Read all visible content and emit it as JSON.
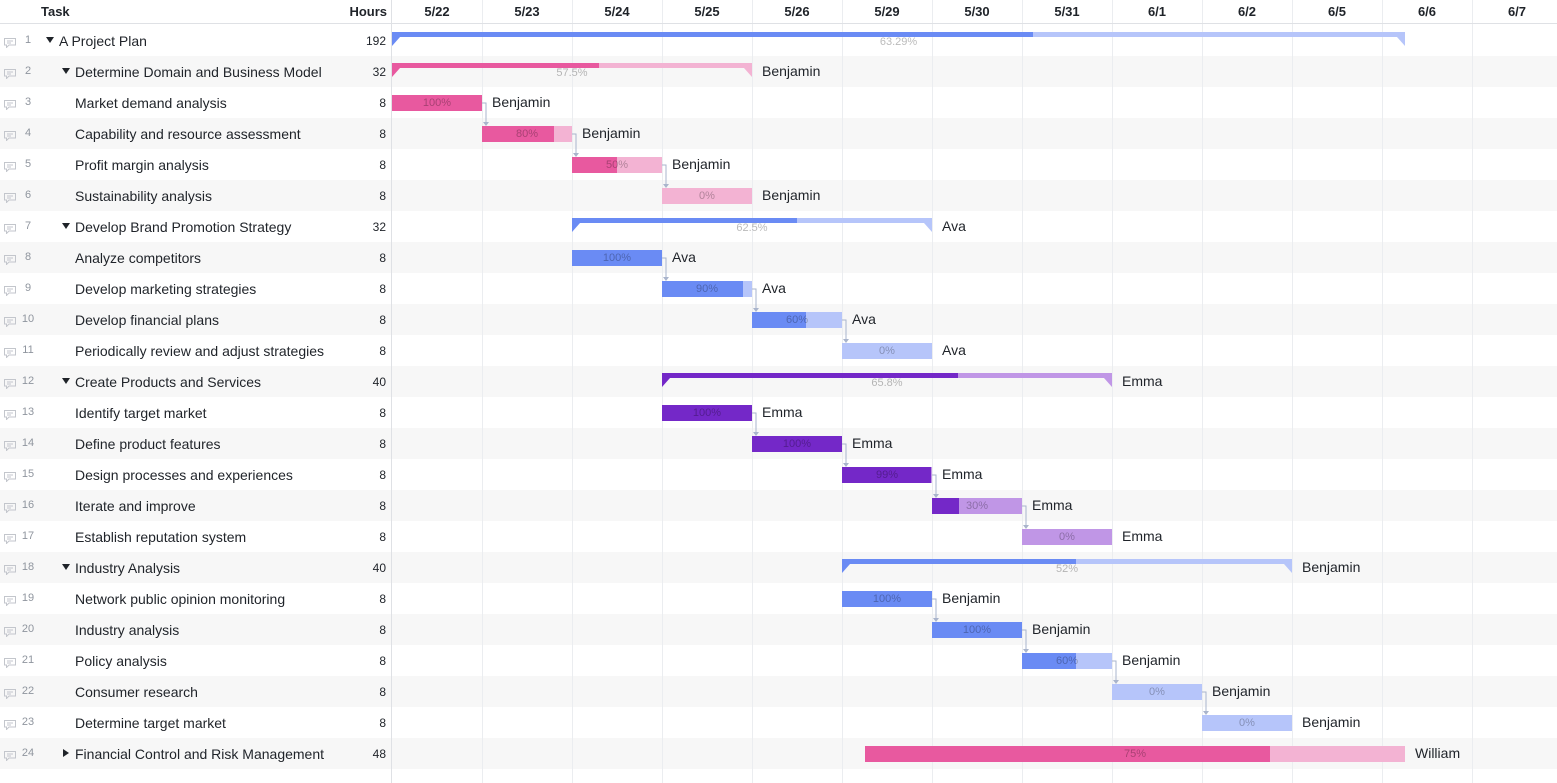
{
  "header": {
    "task_label": "Task",
    "hours_label": "Hours"
  },
  "dates": [
    "5/22",
    "5/23",
    "5/24",
    "5/25",
    "5/26",
    "5/29",
    "5/30",
    "5/31",
    "6/1",
    "6/2",
    "6/5",
    "6/6",
    "6/7"
  ],
  "colors": {
    "blue": "#6a8bf4",
    "blue_light": "#b6c5fa",
    "pink": "#e8599f",
    "pink_light": "#f3b3d3",
    "purple": "#7428c8",
    "purple_light": "#c096e6"
  },
  "icons": {
    "comment": "comment-icon",
    "expanded": "triangle-down-icon",
    "collapsed": "triangle-right-icon"
  },
  "tasks": [
    {
      "num": "1",
      "name": "A Project Plan",
      "hours": "192",
      "level": 0,
      "toggle": "down",
      "type": "summary",
      "color": "blue",
      "start": 0,
      "end": 11.25,
      "progress": 0.6329,
      "pct": "63.29%",
      "assignee": ""
    },
    {
      "num": "2",
      "name": "Determine Domain and Business Model",
      "hours": "32",
      "level": 1,
      "toggle": "down",
      "type": "summary",
      "color": "pink",
      "start": 0,
      "end": 4,
      "progress": 0.575,
      "pct": "57.5%",
      "assignee": "Benjamin"
    },
    {
      "num": "3",
      "name": "Market demand analysis",
      "hours": "8",
      "level": 2,
      "type": "task",
      "color": "pink",
      "start": 0,
      "end": 1,
      "progress": 1,
      "pct": "100%",
      "assignee": "Benjamin"
    },
    {
      "num": "4",
      "name": "Capability and resource assessment",
      "hours": "8",
      "level": 2,
      "type": "task",
      "color": "pink",
      "start": 1,
      "end": 2,
      "progress": 0.8,
      "pct": "80%",
      "assignee": "Benjamin"
    },
    {
      "num": "5",
      "name": "Profit margin analysis",
      "hours": "8",
      "level": 2,
      "type": "task",
      "color": "pink",
      "start": 2,
      "end": 3,
      "progress": 0.5,
      "pct": "50%",
      "assignee": "Benjamin"
    },
    {
      "num": "6",
      "name": "Sustainability analysis",
      "hours": "8",
      "level": 2,
      "type": "task",
      "color": "pink",
      "start": 3,
      "end": 4,
      "progress": 0,
      "pct": "0%",
      "assignee": "Benjamin"
    },
    {
      "num": "7",
      "name": "Develop Brand Promotion Strategy",
      "hours": "32",
      "level": 1,
      "toggle": "down",
      "type": "summary",
      "color": "blue",
      "start": 2,
      "end": 6,
      "progress": 0.625,
      "pct": "62.5%",
      "assignee": "Ava"
    },
    {
      "num": "8",
      "name": "Analyze competitors",
      "hours": "8",
      "level": 2,
      "type": "task",
      "color": "blue",
      "start": 2,
      "end": 3,
      "progress": 1,
      "pct": "100%",
      "assignee": "Ava"
    },
    {
      "num": "9",
      "name": "Develop marketing strategies",
      "hours": "8",
      "level": 2,
      "type": "task",
      "color": "blue",
      "start": 3,
      "end": 4,
      "progress": 0.9,
      "pct": "90%",
      "assignee": "Ava"
    },
    {
      "num": "10",
      "name": "Develop financial plans",
      "hours": "8",
      "level": 2,
      "type": "task",
      "color": "blue",
      "start": 4,
      "end": 5,
      "progress": 0.6,
      "pct": "60%",
      "assignee": "Ava"
    },
    {
      "num": "11",
      "name": "Periodically review and adjust strategies",
      "hours": "8",
      "level": 2,
      "type": "task",
      "color": "blue",
      "start": 5,
      "end": 6,
      "progress": 0,
      "pct": "0%",
      "assignee": "Ava"
    },
    {
      "num": "12",
      "name": "Create Products and Services",
      "hours": "40",
      "level": 1,
      "toggle": "down",
      "type": "summary",
      "color": "purple",
      "start": 3,
      "end": 8,
      "progress": 0.658,
      "pct": "65.8%",
      "assignee": "Emma"
    },
    {
      "num": "13",
      "name": "Identify target market",
      "hours": "8",
      "level": 2,
      "type": "task",
      "color": "purple",
      "start": 3,
      "end": 4,
      "progress": 1,
      "pct": "100%",
      "assignee": "Emma"
    },
    {
      "num": "14",
      "name": "Define product features",
      "hours": "8",
      "level": 2,
      "type": "task",
      "color": "purple",
      "start": 4,
      "end": 5,
      "progress": 1,
      "pct": "100%",
      "assignee": "Emma"
    },
    {
      "num": "15",
      "name": "Design processes and experiences",
      "hours": "8",
      "level": 2,
      "type": "task",
      "color": "purple",
      "start": 5,
      "end": 6,
      "progress": 0.99,
      "pct": "99%",
      "assignee": "Emma"
    },
    {
      "num": "16",
      "name": "Iterate and improve",
      "hours": "8",
      "level": 2,
      "type": "task",
      "color": "purple",
      "start": 6,
      "end": 7,
      "progress": 0.3,
      "pct": "30%",
      "assignee": "Emma"
    },
    {
      "num": "17",
      "name": "Establish reputation system",
      "hours": "8",
      "level": 2,
      "type": "task",
      "color": "purple",
      "start": 7,
      "end": 8,
      "progress": 0,
      "pct": "0%",
      "assignee": "Emma"
    },
    {
      "num": "18",
      "name": "Industry Analysis",
      "hours": "40",
      "level": 1,
      "toggle": "down",
      "type": "summary",
      "color": "blue",
      "start": 5,
      "end": 10,
      "progress": 0.52,
      "pct": "52%",
      "assignee": "Benjamin"
    },
    {
      "num": "19",
      "name": "Network public opinion monitoring",
      "hours": "8",
      "level": 2,
      "type": "task",
      "color": "blue",
      "start": 5,
      "end": 6,
      "progress": 1,
      "pct": "100%",
      "assignee": "Benjamin"
    },
    {
      "num": "20",
      "name": "Industry analysis",
      "hours": "8",
      "level": 2,
      "type": "task",
      "color": "blue",
      "start": 6,
      "end": 7,
      "progress": 1,
      "pct": "100%",
      "assignee": "Benjamin"
    },
    {
      "num": "21",
      "name": "Policy analysis",
      "hours": "8",
      "level": 2,
      "type": "task",
      "color": "blue",
      "start": 7,
      "end": 8,
      "progress": 0.6,
      "pct": "60%",
      "assignee": "Benjamin"
    },
    {
      "num": "22",
      "name": "Consumer research",
      "hours": "8",
      "level": 2,
      "type": "task",
      "color": "blue",
      "start": 8,
      "end": 9,
      "progress": 0,
      "pct": "0%",
      "assignee": "Benjamin"
    },
    {
      "num": "23",
      "name": "Determine target market",
      "hours": "8",
      "level": 2,
      "type": "task",
      "color": "blue",
      "start": 9,
      "end": 10,
      "progress": 0,
      "pct": "0%",
      "assignee": "Benjamin"
    },
    {
      "num": "24",
      "name": "Financial Control and Risk Management",
      "hours": "48",
      "level": 1,
      "toggle": "right",
      "type": "task",
      "color": "pink",
      "start": 5.25,
      "end": 11.25,
      "progress": 0.75,
      "pct": "75%",
      "assignee": "William"
    }
  ],
  "links": [
    [
      2,
      3
    ],
    [
      3,
      4
    ],
    [
      4,
      5
    ],
    [
      7,
      8
    ],
    [
      8,
      9
    ],
    [
      9,
      10
    ],
    [
      12,
      13
    ],
    [
      13,
      14
    ],
    [
      14,
      15
    ],
    [
      15,
      16
    ],
    [
      18,
      19
    ],
    [
      19,
      20
    ],
    [
      20,
      21
    ],
    [
      21,
      22
    ]
  ]
}
